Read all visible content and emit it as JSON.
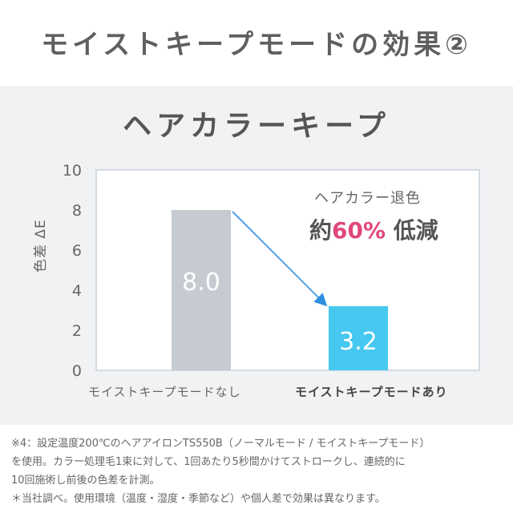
{
  "header": {
    "title": "モイストキープモードの効果②"
  },
  "chart_data": {
    "type": "bar",
    "title": "ヘアカラーキープ",
    "ylabel": "色差 ΔE",
    "xlabel": "",
    "ylim": [
      0,
      10
    ],
    "yticks": [
      0,
      2,
      4,
      6,
      8,
      10
    ],
    "categories": [
      "モイストキープモードなし",
      "モイストキープモードあり"
    ],
    "values": [
      8.0,
      3.2
    ],
    "value_labels": [
      "8.0",
      "3.2"
    ],
    "bar_colors": [
      "#c6cbd2",
      "#46c8f0"
    ],
    "grid": false,
    "annotation": {
      "line1": "ヘアカラー退色",
      "prefix": "約",
      "percent": "60%",
      "suffix": "低減"
    },
    "arrow_color": "#2f8fe0"
  },
  "footnote": {
    "line1": "※4：設定温度200℃のヘアアイロンTS550B（ノーマルモード / モイストキープモード）",
    "line2": "を使用。カラー処理毛1束に対して、1回あたり5秒間かけてストロークし、連続的に",
    "line3": "10回施術し前後の色差を計測。",
    "line4": "＊当社調べ。使用環境（温度・湿度・季節など）や個人差で効果は異なります。"
  }
}
